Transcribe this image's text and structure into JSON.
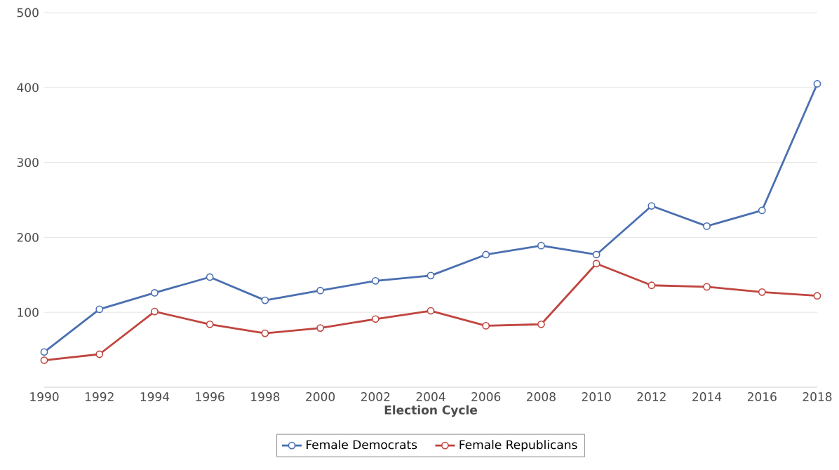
{
  "chart_data": {
    "type": "line",
    "xlabel": "Election Cycle",
    "categories": [
      "1990",
      "1992",
      "1994",
      "1996",
      "1998",
      "2000",
      "2002",
      "2004",
      "2006",
      "2008",
      "2010",
      "2012",
      "2014",
      "2016",
      "2018"
    ],
    "series": [
      {
        "name": "Female Democrats",
        "color": "#4a6fb0",
        "values": [
          47,
          104,
          126,
          147,
          116,
          129,
          142,
          149,
          177,
          189,
          177,
          242,
          215,
          236,
          405
        ]
      },
      {
        "name": "Female Republicans",
        "color": "#c0453f",
        "values": [
          36,
          44,
          101,
          84,
          72,
          79,
          91,
          102,
          82,
          84,
          165,
          136,
          134,
          127,
          122
        ]
      }
    ],
    "ylim": [
      0,
      500
    ],
    "yticks": [
      100,
      200,
      300,
      400,
      500
    ],
    "grid": "y",
    "legend": "bottom",
    "marker": "circle",
    "line_style": "solid"
  }
}
